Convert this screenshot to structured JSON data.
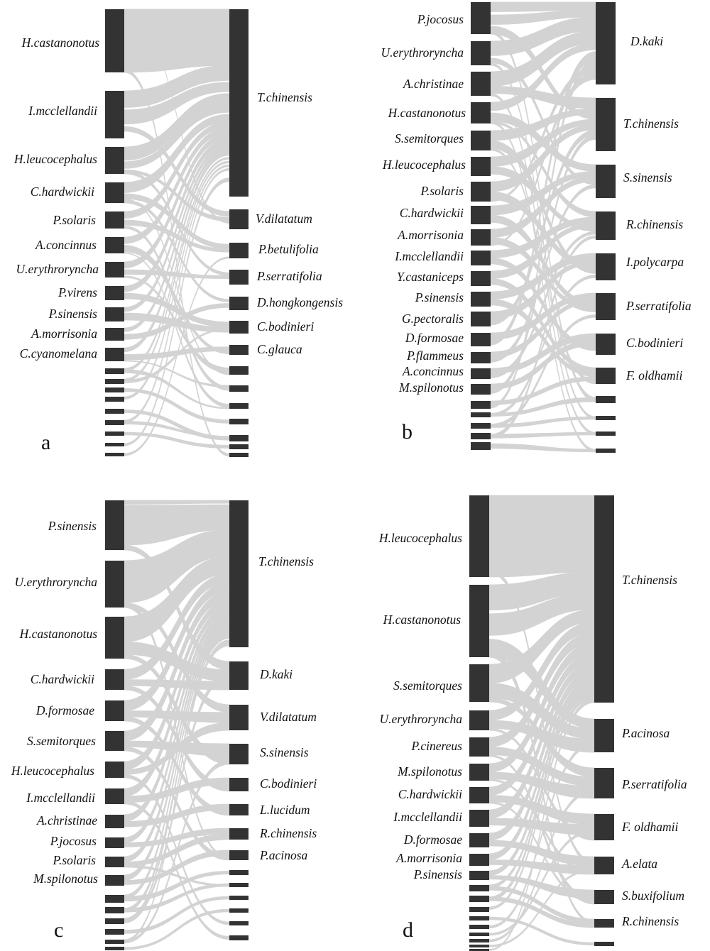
{
  "figure": {
    "colors": {
      "node": "#333333",
      "link": "#d3d3d3",
      "text": "#111111"
    },
    "panels": [
      {
        "letter": "a",
        "birds": [
          "H.castanonotus",
          "I.mcclellandii",
          "H.leucocephalus",
          "C.hardwickii",
          "P.solaris",
          "A.concinnus",
          "U.erythroryncha",
          "P.virens",
          "P.sinensis",
          "A.morrisonia",
          "C.cyanomelana",
          "",
          "",
          "",
          "",
          "",
          "",
          "",
          "",
          ""
        ],
        "plants": [
          "T.chinensis",
          "V.dilatatum",
          "P.betulifolia",
          "P.serratifolia",
          "D.hongkongensis",
          "C.bodinieri",
          "C.glauca",
          "",
          "",
          "",
          "",
          "",
          "",
          ""
        ]
      },
      {
        "letter": "b",
        "birds": [
          "P.jocosus",
          "U.erythroryncha",
          "A.christinae",
          "H.castanonotus",
          "S.semitorques",
          "H.leucocephalus",
          "P.solaris",
          "C.hardwickii",
          "A.morrisonia",
          "I.mcclellandii",
          "Y.castaniceps",
          "P.sinensis",
          "G.pectoralis",
          "D.formosae",
          "P.flammeus",
          "A.concinnus",
          "M.spilonotus",
          "",
          "",
          "",
          "",
          ""
        ],
        "plants": [
          "D.kaki",
          "T.chinensis",
          "S.sinensis",
          "R.chinensis",
          "I.polycarpa",
          "P.serratifolia",
          "C.bodinieri",
          "F. oldhamii",
          "",
          "",
          "",
          ""
        ]
      },
      {
        "letter": "c",
        "birds": [
          "P.sinensis",
          "U.erythroryncha",
          "H.castanonotus",
          "C.hardwickii",
          "D.formosae",
          "S.semitorques",
          "H.leucocephalus",
          "I.mcclellandii",
          "A.christinae",
          "P.jocosus",
          "P.solaris",
          "M.spilonotus",
          "",
          "",
          "",
          "",
          "",
          ""
        ],
        "plants": [
          "T.chinensis",
          "D.kaki",
          "V.dilatatum",
          "S.sinensis",
          "C.bodinieri",
          "L.lucidum",
          "R.chinensis",
          "P.acinosa",
          "",
          "",
          "",
          "",
          "",
          ""
        ]
      },
      {
        "letter": "d",
        "birds": [
          "H.leucocephalus",
          "H.castanonotus",
          "S.semitorques",
          "U.erythroryncha",
          "P.cinereus",
          "M.spilonotus",
          "C.hardwickii",
          "I.mcclellandii",
          "D.formosae",
          "A.morrisonia",
          "P.sinensis",
          "",
          "",
          "",
          "",
          "",
          "",
          "",
          "",
          ""
        ],
        "plants": [
          "T.chinensis",
          "P.acinosa",
          "P.serratifolia",
          "F. oldhamii",
          "A.elata",
          "S.buxifolium",
          "R.chinensis",
          ""
        ]
      }
    ]
  }
}
